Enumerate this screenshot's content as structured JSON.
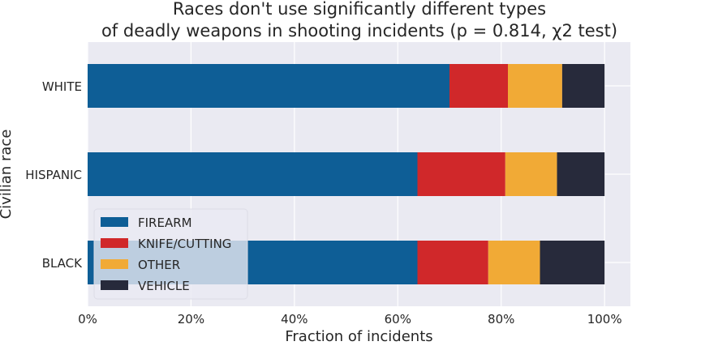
{
  "chart_data": {
    "type": "bar",
    "orientation": "horizontal",
    "stacked": true,
    "title_lines": [
      "Races don't use significantly different types",
      "of deadly weapons in shooting incidents (p = 0.814, χ2 test)"
    ],
    "xlabel": "Fraction of incidents",
    "ylabel": "Civilian race",
    "xlim": [
      0,
      1.05
    ],
    "x_ticks": [
      0,
      0.2,
      0.4,
      0.6,
      0.8,
      1.0
    ],
    "x_tick_labels": [
      "0%",
      "20%",
      "40%",
      "60%",
      "80%",
      "100%"
    ],
    "categories": [
      "WHITE",
      "HISPANIC",
      "BLACK"
    ],
    "series": [
      {
        "name": "FIREARM",
        "color": "#0e5e96",
        "values": [
          0.7,
          0.638,
          0.638
        ]
      },
      {
        "name": "KNIFE/CUTTING",
        "color": "#d0282a",
        "values": [
          0.113,
          0.17,
          0.137
        ]
      },
      {
        "name": "OTHER",
        "color": "#f1aa36",
        "values": [
          0.105,
          0.1,
          0.1
        ]
      },
      {
        "name": "VEHICLE",
        "color": "#272a3b",
        "values": [
          0.082,
          0.092,
          0.125
        ]
      }
    ],
    "grid": true,
    "legend_position": "lower-left",
    "background_color": "#eaeaf2"
  }
}
